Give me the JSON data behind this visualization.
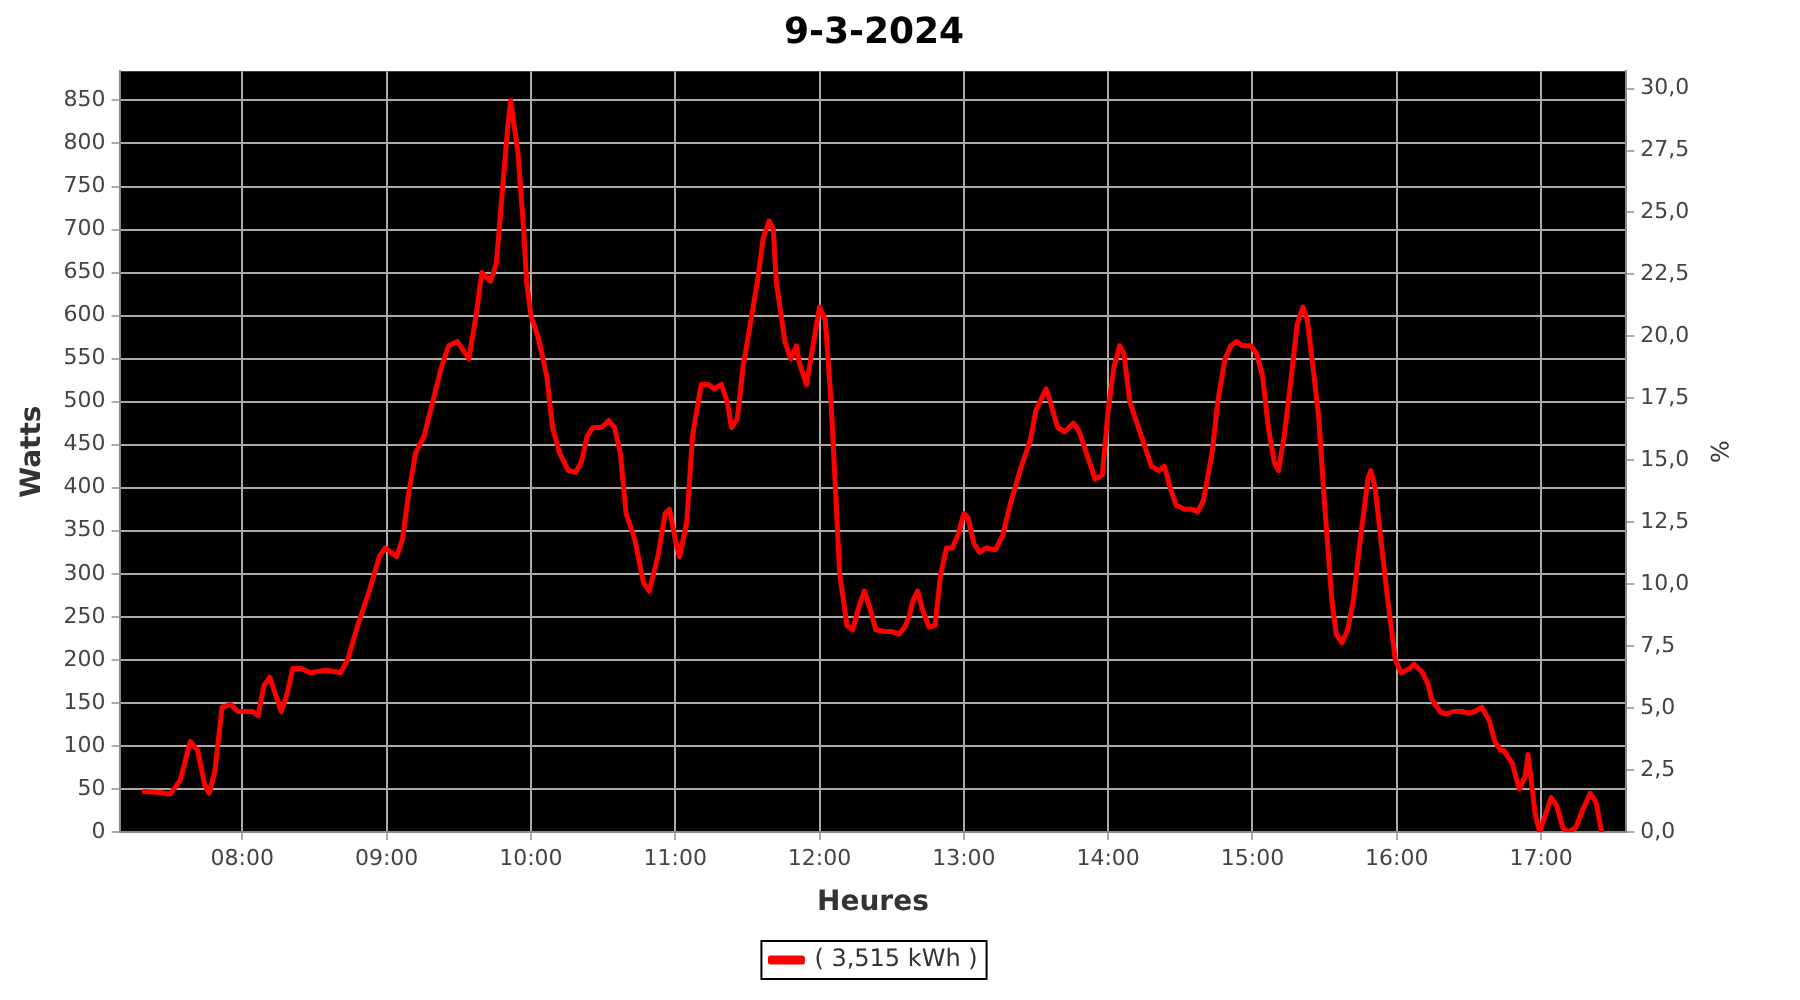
{
  "chart_data": {
    "type": "line",
    "title": "9-3-2024",
    "xlabel": "Heures",
    "ylabel": "Watts",
    "y2label": "%",
    "xlim": [
      7.15,
      17.59
    ],
    "xticks": [
      {
        "value": 8,
        "label": "08:00"
      },
      {
        "value": 9,
        "label": "09:00"
      },
      {
        "value": 10,
        "label": "10:00"
      },
      {
        "value": 11,
        "label": "11:00"
      },
      {
        "value": 12,
        "label": "12:00"
      },
      {
        "value": 13,
        "label": "13:00"
      },
      {
        "value": 14,
        "label": "14:00"
      },
      {
        "value": 15,
        "label": "15:00"
      },
      {
        "value": 16,
        "label": "16:00"
      },
      {
        "value": 17,
        "label": "17:00"
      }
    ],
    "ylim": [
      0,
      884
    ],
    "yticks": [
      0,
      50,
      100,
      150,
      200,
      250,
      300,
      350,
      400,
      450,
      500,
      550,
      600,
      650,
      700,
      750,
      800,
      850
    ],
    "y2lim": [
      0,
      30.7
    ],
    "y2ticks": [
      {
        "value": 0,
        "label": "0,0"
      },
      {
        "value": 2.5,
        "label": "2,5"
      },
      {
        "value": 5,
        "label": "5,0"
      },
      {
        "value": 7.5,
        "label": "7,5"
      },
      {
        "value": 10,
        "label": "10,0"
      },
      {
        "value": 12.5,
        "label": "12,5"
      },
      {
        "value": 15,
        "label": "15,0"
      },
      {
        "value": 17.5,
        "label": "17,5"
      },
      {
        "value": 20,
        "label": "20,0"
      },
      {
        "value": 22.5,
        "label": "22,5"
      },
      {
        "value": 25,
        "label": "25,0"
      },
      {
        "value": 27.5,
        "label": "27,5"
      },
      {
        "value": 30,
        "label": "30,0"
      }
    ],
    "grid": true,
    "legend": "bottom",
    "marker": "none",
    "line_style": "solid",
    "series": [
      {
        "name": "( 3,515 kWh )",
        "color": "#ff0000",
        "x": [
          7.32,
          7.43,
          7.5,
          7.57,
          7.64,
          7.69,
          7.74,
          7.77,
          7.81,
          7.86,
          7.92,
          7.97,
          8.07,
          8.11,
          8.15,
          8.19,
          8.23,
          8.27,
          8.31,
          8.35,
          8.41,
          8.47,
          8.58,
          8.68,
          8.73,
          8.8,
          8.88,
          8.95,
          8.99,
          9.03,
          9.07,
          9.11,
          9.15,
          9.2,
          9.26,
          9.32,
          9.38,
          9.43,
          9.49,
          9.53,
          9.57,
          9.62,
          9.66,
          9.72,
          9.76,
          9.8,
          9.84,
          9.86,
          9.91,
          9.95,
          9.97,
          10,
          10.05,
          10.11,
          10.15,
          10.2,
          10.26,
          10.31,
          10.35,
          10.39,
          10.43,
          10.49,
          10.54,
          10.58,
          10.62,
          10.66,
          10.72,
          10.78,
          10.82,
          10.88,
          10.93,
          10.96,
          11,
          11.03,
          11.08,
          11.12,
          11.18,
          11.23,
          11.27,
          11.32,
          11.36,
          11.39,
          11.43,
          11.47,
          11.53,
          11.57,
          11.61,
          11.65,
          11.68,
          11.7,
          11.76,
          11.8,
          11.84,
          11.86,
          11.91,
          11.96,
          12,
          12.04,
          12.08,
          12.14,
          12.19,
          12.23,
          12.27,
          12.31,
          12.35,
          12.39,
          12.45,
          12.5,
          12.55,
          12.59,
          12.62,
          12.65,
          12.68,
          12.72,
          12.76,
          12.8,
          12.84,
          12.88,
          12.92,
          12.96,
          13,
          13.03,
          13.07,
          13.11,
          13.15,
          13.22,
          13.27,
          13.32,
          13.39,
          13.46,
          13.5,
          13.57,
          13.59,
          13.65,
          13.7,
          13.76,
          13.8,
          13.85,
          13.91,
          13.96,
          14,
          14.04,
          14.08,
          14.11,
          14.15,
          14.19,
          14.24,
          14.3,
          14.35,
          14.39,
          14.43,
          14.47,
          14.53,
          14.58,
          14.62,
          14.66,
          14.72,
          14.76,
          14.81,
          14.85,
          14.89,
          14.93,
          14.99,
          15.03,
          15.07,
          15.11,
          15.15,
          15.18,
          15.22,
          15.27,
          15.31,
          15.35,
          15.38,
          15.42,
          15.46,
          15.5,
          15.55,
          15.58,
          15.62,
          15.66,
          15.7,
          15.74,
          15.8,
          15.82,
          15.85,
          15.89,
          15.93,
          15.96,
          15.99,
          16.03,
          16.09,
          16.12,
          16.18,
          16.22,
          16.24,
          16.3,
          16.34,
          16.39,
          16.45,
          16.5,
          16.54,
          16.59,
          16.64,
          16.68,
          16.72,
          16.74,
          16.8,
          16.84,
          16.85,
          16.89,
          16.91,
          16.96,
          16.99,
          17.04,
          17.07,
          17.11,
          17.15,
          17.19,
          17.24,
          17.3,
          17.34,
          17.38,
          17.42
        ],
        "values": [
          47,
          46,
          44,
          60,
          105,
          95,
          55,
          45,
          70,
          145,
          148,
          140,
          140,
          135,
          170,
          180,
          160,
          140,
          160,
          190,
          190,
          185,
          188,
          185,
          200,
          240,
          280,
          320,
          330,
          325,
          320,
          340,
          390,
          440,
          460,
          500,
          540,
          565,
          570,
          560,
          550,
          600,
          650,
          640,
          660,
          740,
          820,
          850,
          790,
          700,
          640,
          600,
          575,
          530,
          470,
          440,
          420,
          418,
          430,
          460,
          470,
          470,
          478,
          470,
          440,
          370,
          340,
          290,
          280,
          320,
          370,
          375,
          340,
          320,
          360,
          460,
          520,
          520,
          515,
          520,
          500,
          470,
          480,
          540,
          600,
          640,
          690,
          710,
          700,
          640,
          570,
          550,
          565,
          545,
          520,
          570,
          610,
          595,
          500,
          300,
          240,
          235,
          260,
          280,
          260,
          235,
          233,
          233,
          230,
          238,
          250,
          270,
          280,
          255,
          238,
          240,
          300,
          330,
          330,
          345,
          370,
          365,
          335,
          325,
          330,
          328,
          345,
          380,
          420,
          455,
          490,
          515,
          505,
          470,
          465,
          475,
          465,
          440,
          410,
          415,
          490,
          540,
          565,
          555,
          500,
          480,
          455,
          425,
          420,
          425,
          400,
          380,
          375,
          375,
          372,
          385,
          440,
          500,
          550,
          565,
          570,
          565,
          565,
          555,
          530,
          470,
          430,
          420,
          460,
          530,
          590,
          610,
          595,
          540,
          480,
          380,
          270,
          230,
          220,
          235,
          270,
          330,
          410,
          420,
          400,
          340,
          280,
          240,
          200,
          185,
          190,
          195,
          185,
          170,
          155,
          140,
          137,
          140,
          140,
          138,
          140,
          145,
          130,
          105,
          95,
          95,
          80,
          55,
          50,
          65,
          90,
          20,
          0,
          25,
          40,
          30,
          5,
          0,
          5,
          30,
          45,
          35,
          0
        ]
      }
    ]
  }
}
